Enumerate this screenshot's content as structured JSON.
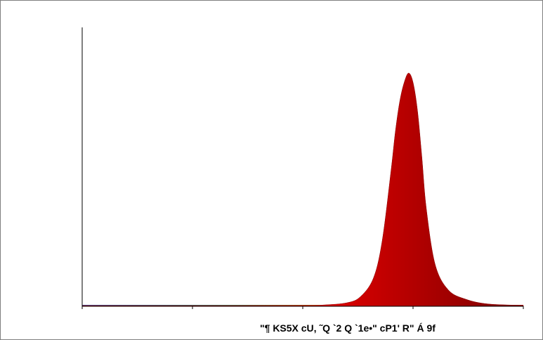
{
  "chart_data": {
    "type": "area",
    "title": "",
    "xlabel": "\"¶  KS5X cU, ˜Q `2  Q `1e•\" cP1' R\" Á  9f",
    "ylabel": "",
    "grid": false,
    "legend": "none",
    "fill_gradient": [
      "#ff3030",
      "#e00000",
      "#7a0000"
    ],
    "series": [
      {
        "x": [
          0,
          0.25,
          0.5,
          0.55,
          0.6,
          0.63,
          0.66,
          0.68,
          0.7,
          0.71,
          0.72,
          0.73,
          0.74,
          0.75,
          0.76,
          0.77,
          0.78,
          0.8,
          0.83,
          0.87,
          0.92,
          1.0
        ],
        "y": [
          0.3,
          0.3,
          0.4,
          0.6,
          1.5,
          4,
          12,
          28,
          58,
          75,
          88,
          96,
          100,
          96,
          84,
          64,
          42,
          18,
          7,
          3,
          1,
          0.4
        ]
      }
    ],
    "xlim": [
      0,
      1
    ],
    "ylim": [
      0,
      100
    ],
    "x_ticks": [
      0,
      0.25,
      0.5,
      0.75,
      1.0
    ],
    "baseline_spectrum": [
      "#2b4ca8",
      "#2e8f6a",
      "#c9a21c",
      "#d43a1c",
      "#d01010"
    ]
  }
}
